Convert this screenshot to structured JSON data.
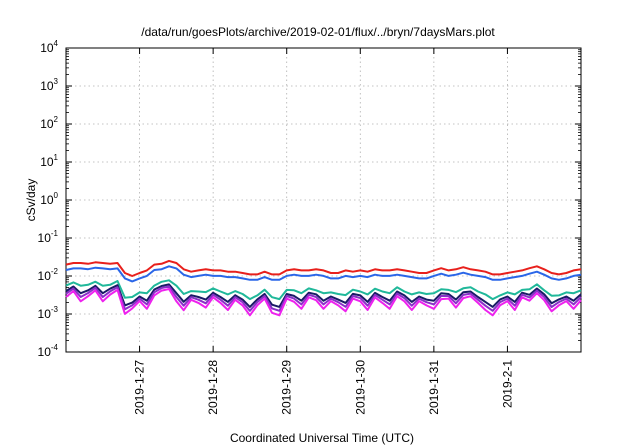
{
  "chart_data": {
    "type": "line",
    "title": "/data/run/goesPlots/archive/2019-02-01/flux/../bryn/7daysMars.plot",
    "xlabel": "Coordinated Universal Time (UTC)",
    "ylabel": "cSv/day",
    "yscale": "log",
    "ylim": [
      0.0001,
      10000
    ],
    "y_ticks": [
      {
        "base": "10",
        "exp": "-4"
      },
      {
        "base": "10",
        "exp": "-3"
      },
      {
        "base": "10",
        "exp": "-2"
      },
      {
        "base": "10",
        "exp": "-1"
      },
      {
        "base": "10",
        "exp": "0"
      },
      {
        "base": "10",
        "exp": "1"
      },
      {
        "base": "10",
        "exp": "2"
      },
      {
        "base": "10",
        "exp": "3"
      },
      {
        "base": "10",
        "exp": "4"
      }
    ],
    "xlim": [
      0,
      7
    ],
    "x_ticks": [
      {
        "label": "2019-1-27",
        "x": 1.0
      },
      {
        "label": "2019-1-28",
        "x": 2.0
      },
      {
        "label": "2019-1-29",
        "x": 3.0
      },
      {
        "label": "2019-1-30",
        "x": 4.0
      },
      {
        "label": "2019-1-31",
        "x": 5.0
      },
      {
        "label": "2019-2-1",
        "x": 6.0
      }
    ],
    "grid": true,
    "series": [
      {
        "color": "#e8201c",
        "factor": 1.0
      },
      {
        "color": "#2a66e8",
        "factor": 0.72
      },
      {
        "color": "#20b89a",
        "factor": 0.28
      },
      {
        "color": "#1a1a66",
        "factor": 0.2
      },
      {
        "color": "#8a30c8",
        "factor": 0.17
      },
      {
        "color": "#ee22ee",
        "factor": 0.14
      }
    ],
    "x": [
      0.0,
      0.1,
      0.2,
      0.3,
      0.4,
      0.5,
      0.6,
      0.7,
      0.8,
      0.9,
      1.0,
      1.1,
      1.2,
      1.3,
      1.4,
      1.5,
      1.6,
      1.7,
      1.8,
      1.9,
      2.0,
      2.1,
      2.2,
      2.3,
      2.4,
      2.5,
      2.6,
      2.7,
      2.8,
      2.9,
      3.0,
      3.1,
      3.2,
      3.3,
      3.4,
      3.5,
      3.6,
      3.7,
      3.8,
      3.9,
      4.0,
      4.1,
      4.2,
      4.3,
      4.4,
      4.5,
      4.6,
      4.7,
      4.8,
      4.9,
      5.0,
      5.1,
      5.2,
      5.3,
      5.4,
      5.5,
      5.6,
      5.7,
      5.8,
      5.9,
      6.0,
      6.1,
      6.2,
      6.3,
      6.4,
      6.5,
      6.6,
      6.7,
      6.8,
      6.9,
      7.0
    ],
    "base_values": [
      0.02,
      0.022,
      0.022,
      0.021,
      0.023,
      0.022,
      0.021,
      0.022,
      0.012,
      0.01,
      0.012,
      0.014,
      0.02,
      0.021,
      0.025,
      0.022,
      0.015,
      0.013,
      0.014,
      0.015,
      0.014,
      0.014,
      0.013,
      0.013,
      0.012,
      0.011,
      0.011,
      0.013,
      0.011,
      0.011,
      0.014,
      0.015,
      0.014,
      0.014,
      0.015,
      0.014,
      0.012,
      0.012,
      0.014,
      0.013,
      0.014,
      0.013,
      0.015,
      0.014,
      0.014,
      0.015,
      0.014,
      0.013,
      0.012,
      0.012,
      0.014,
      0.016,
      0.014,
      0.015,
      0.017,
      0.015,
      0.014,
      0.013,
      0.011,
      0.011,
      0.012,
      0.013,
      0.014,
      0.016,
      0.018,
      0.015,
      0.012,
      0.011,
      0.012,
      0.014,
      0.015
    ],
    "member_jitter": [
      [
        1.0,
        1.0,
        1.0,
        1.0,
        1.0,
        1.0,
        1.0,
        1.0,
        1.0,
        1.0,
        1.0,
        1.0,
        1.0,
        1.0,
        1.0,
        1.0,
        1.0,
        1.0,
        1.0,
        1.0,
        1.0,
        1.0,
        1.0,
        1.0,
        1.0,
        1.0,
        1.0,
        1.0,
        1.0,
        1.0,
        1.0,
        1.0,
        1.0,
        1.0,
        1.0,
        1.0,
        1.0,
        1.0,
        1.0,
        1.0,
        1.0,
        1.0,
        1.0,
        1.0,
        1.0,
        1.0,
        1.0,
        1.0,
        1.0,
        1.0,
        1.0,
        1.0,
        1.0,
        1.0,
        1.0,
        1.0,
        1.0,
        1.0,
        1.0,
        1.0,
        1.0,
        1.0,
        1.0,
        1.0,
        1.0,
        1.0,
        1.0,
        1.0,
        1.0,
        1.0,
        1.0
      ],
      [
        1.0,
        1.0,
        1.0,
        1.0,
        1.0,
        1.0,
        1.0,
        1.0,
        1.0,
        1.0,
        1.0,
        1.0,
        1.0,
        1.0,
        1.0,
        1.0,
        1.0,
        1.0,
        1.0,
        1.0,
        1.0,
        1.0,
        1.0,
        1.0,
        1.0,
        1.0,
        1.0,
        1.0,
        1.0,
        1.0,
        1.0,
        1.0,
        1.0,
        1.0,
        1.0,
        1.0,
        1.0,
        1.0,
        1.0,
        1.0,
        1.0,
        1.0,
        1.0,
        1.0,
        1.0,
        1.0,
        1.0,
        1.0,
        1.0,
        1.0,
        1.0,
        1.0,
        1.0,
        1.0,
        1.0,
        1.0,
        1.0,
        1.0,
        1.0,
        1.0,
        1.0,
        1.0,
        1.0,
        1.0,
        1.0,
        1.0,
        1.0,
        1.0,
        1.0,
        1.0,
        1.0
      ],
      [
        1.0,
        1.1,
        0.9,
        1.0,
        1.1,
        0.9,
        1.0,
        1.2,
        0.8,
        1.0,
        1.1,
        0.9,
        1.0,
        1.2,
        1.1,
        0.9,
        0.8,
        1.1,
        1.0,
        0.9,
        1.2,
        1.0,
        0.9,
        1.1,
        1.0,
        0.8,
        1.0,
        1.2,
        0.9,
        0.8,
        1.1,
        1.0,
        0.9,
        1.2,
        1.0,
        0.9,
        1.1,
        1.0,
        0.8,
        1.2,
        1.0,
        0.9,
        1.1,
        1.0,
        0.9,
        1.2,
        1.0,
        0.9,
        1.1,
        1.0,
        0.9,
        1.0,
        1.1,
        0.9,
        1.0,
        1.2,
        1.0,
        0.9,
        0.8,
        1.0,
        1.1,
        0.9,
        1.1,
        1.0,
        1.2,
        1.0,
        0.9,
        1.0,
        1.1,
        0.9,
        1.0
      ],
      [
        1.0,
        1.2,
        0.8,
        1.0,
        1.2,
        0.8,
        1.1,
        1.3,
        0.7,
        1.0,
        1.2,
        0.8,
        1.1,
        1.3,
        1.2,
        0.8,
        0.7,
        1.2,
        1.0,
        0.8,
        1.3,
        1.0,
        0.8,
        1.2,
        1.0,
        0.7,
        1.1,
        1.3,
        0.8,
        0.7,
        1.2,
        1.0,
        0.8,
        1.3,
        1.1,
        0.8,
        1.2,
        1.0,
        0.7,
        1.3,
        1.1,
        0.8,
        1.2,
        1.0,
        0.8,
        1.3,
        1.1,
        0.8,
        1.2,
        1.0,
        0.8,
        1.1,
        1.2,
        0.8,
        1.1,
        1.3,
        1.0,
        0.8,
        0.7,
        1.1,
        1.2,
        0.8,
        1.3,
        1.0,
        1.3,
        1.1,
        0.8,
        1.1,
        1.2,
        0.8,
        1.1
      ],
      [
        1.0,
        1.25,
        0.75,
        1.0,
        1.25,
        0.75,
        1.1,
        1.35,
        0.65,
        1.0,
        1.25,
        0.75,
        1.1,
        1.35,
        1.25,
        0.75,
        0.65,
        1.25,
        1.0,
        0.75,
        1.35,
        1.0,
        0.75,
        1.25,
        1.0,
        0.65,
        1.1,
        1.35,
        0.75,
        0.65,
        1.25,
        1.0,
        0.75,
        1.35,
        1.1,
        0.75,
        1.25,
        1.0,
        0.65,
        1.35,
        1.1,
        0.75,
        1.25,
        1.0,
        0.75,
        1.35,
        1.1,
        0.75,
        1.25,
        1.0,
        0.75,
        1.1,
        1.25,
        0.75,
        1.1,
        1.35,
        1.0,
        0.75,
        0.65,
        1.1,
        1.25,
        0.75,
        1.35,
        1.0,
        1.35,
        1.1,
        0.75,
        1.1,
        1.25,
        0.75,
        1.1
      ],
      [
        1.0,
        1.3,
        0.7,
        1.0,
        1.3,
        0.7,
        1.1,
        1.4,
        0.6,
        1.0,
        1.3,
        0.7,
        1.1,
        1.4,
        1.3,
        0.7,
        0.6,
        1.3,
        1.0,
        0.7,
        1.4,
        1.0,
        0.7,
        1.3,
        1.0,
        0.6,
        1.1,
        1.4,
        0.7,
        0.6,
        1.3,
        1.0,
        0.7,
        1.4,
        1.1,
        0.7,
        1.3,
        1.0,
        0.6,
        1.4,
        1.1,
        0.7,
        1.3,
        1.0,
        0.7,
        1.4,
        1.1,
        0.7,
        1.3,
        1.0,
        0.7,
        1.1,
        1.3,
        0.7,
        1.1,
        1.4,
        1.0,
        0.7,
        0.6,
        1.1,
        1.3,
        0.7,
        1.4,
        1.0,
        1.4,
        1.1,
        0.7,
        1.1,
        1.3,
        0.7,
        1.1
      ]
    ]
  }
}
